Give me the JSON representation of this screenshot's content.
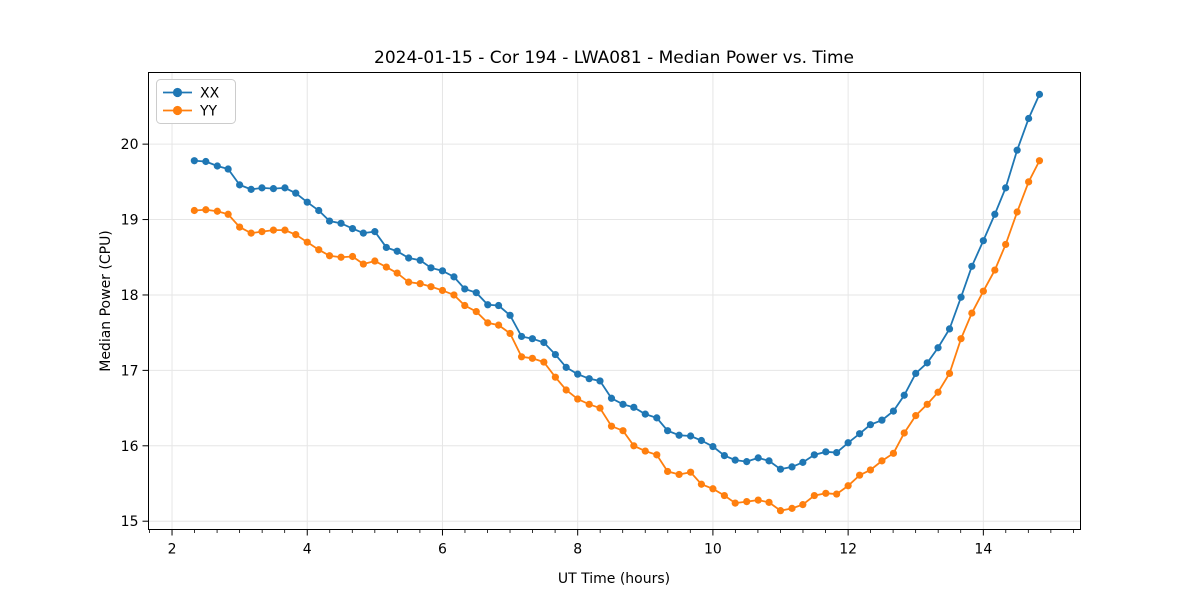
{
  "chart_data": {
    "type": "line",
    "title": "2024-01-15 - Cor 194 - LWA081 - Median Power vs. Time",
    "xlabel": "UT Time (hours)",
    "ylabel": "Median Power (CPU)",
    "xlim": [
      1.652,
      15.437
    ],
    "ylim": [
      14.89,
      20.95
    ],
    "xticks": [
      2,
      4,
      6,
      8,
      10,
      12,
      14
    ],
    "yticks": [
      15,
      16,
      17,
      18,
      19,
      20
    ],
    "x_minor_step": 0.3333,
    "grid": true,
    "grid_color": "#e6e6e6",
    "legend_position": "upper left",
    "x": [
      2.33,
      2.5,
      2.67,
      2.83,
      3.0,
      3.17,
      3.33,
      3.5,
      3.67,
      3.83,
      4.0,
      4.17,
      4.33,
      4.5,
      4.67,
      4.83,
      5.0,
      5.17,
      5.33,
      5.5,
      5.67,
      5.83,
      6.0,
      6.17,
      6.33,
      6.5,
      6.67,
      6.83,
      7.0,
      7.17,
      7.33,
      7.5,
      7.67,
      7.83,
      8.0,
      8.17,
      8.33,
      8.5,
      8.67,
      8.83,
      9.0,
      9.17,
      9.33,
      9.5,
      9.67,
      9.83,
      10.0,
      10.17,
      10.33,
      10.5,
      10.67,
      10.83,
      11.0,
      11.17,
      11.33,
      11.5,
      11.67,
      11.83,
      12.0,
      12.17,
      12.33,
      12.5,
      12.67,
      12.83,
      13.0,
      13.17,
      13.33,
      13.5,
      13.67,
      13.83,
      14.0,
      14.17,
      14.33,
      14.5,
      14.67,
      14.83
    ],
    "series": [
      {
        "name": "XX",
        "color": "#1f77b4",
        "values": [
          19.78,
          19.77,
          19.71,
          19.67,
          19.46,
          19.4,
          19.42,
          19.41,
          19.42,
          19.35,
          19.23,
          19.12,
          18.98,
          18.95,
          18.88,
          18.82,
          18.84,
          18.63,
          18.58,
          18.49,
          18.46,
          18.36,
          18.32,
          18.24,
          18.08,
          18.03,
          17.87,
          17.86,
          17.73,
          17.45,
          17.42,
          17.37,
          17.21,
          17.04,
          16.95,
          16.89,
          16.86,
          16.63,
          16.55,
          16.51,
          16.42,
          16.37,
          16.2,
          16.14,
          16.13,
          16.07,
          15.99,
          15.87,
          15.81,
          15.79,
          15.84,
          15.8,
          15.69,
          15.72,
          15.78,
          15.88,
          15.92,
          15.91,
          16.04,
          16.16,
          16.28,
          16.34,
          16.46,
          16.67,
          16.96,
          17.1,
          17.3,
          17.55,
          17.97,
          18.38,
          18.72,
          19.07,
          19.42,
          19.92,
          20.34,
          20.66
        ]
      },
      {
        "name": "YY",
        "color": "#ff7f0e",
        "values": [
          19.12,
          19.13,
          19.11,
          19.07,
          18.9,
          18.82,
          18.84,
          18.86,
          18.86,
          18.8,
          18.7,
          18.6,
          18.52,
          18.5,
          18.51,
          18.41,
          18.45,
          18.37,
          18.29,
          18.17,
          18.15,
          18.11,
          18.06,
          18.0,
          17.86,
          17.78,
          17.63,
          17.6,
          17.49,
          17.18,
          17.16,
          17.11,
          16.91,
          16.74,
          16.62,
          16.55,
          16.5,
          16.26,
          16.2,
          16.0,
          15.93,
          15.88,
          15.66,
          15.62,
          15.65,
          15.49,
          15.43,
          15.34,
          15.24,
          15.26,
          15.28,
          15.25,
          15.14,
          15.17,
          15.22,
          15.34,
          15.37,
          15.36,
          15.47,
          15.61,
          15.68,
          15.8,
          15.9,
          16.17,
          16.4,
          16.55,
          16.71,
          16.96,
          17.42,
          17.76,
          18.05,
          18.33,
          18.67,
          19.1,
          19.5,
          19.78
        ]
      }
    ]
  }
}
